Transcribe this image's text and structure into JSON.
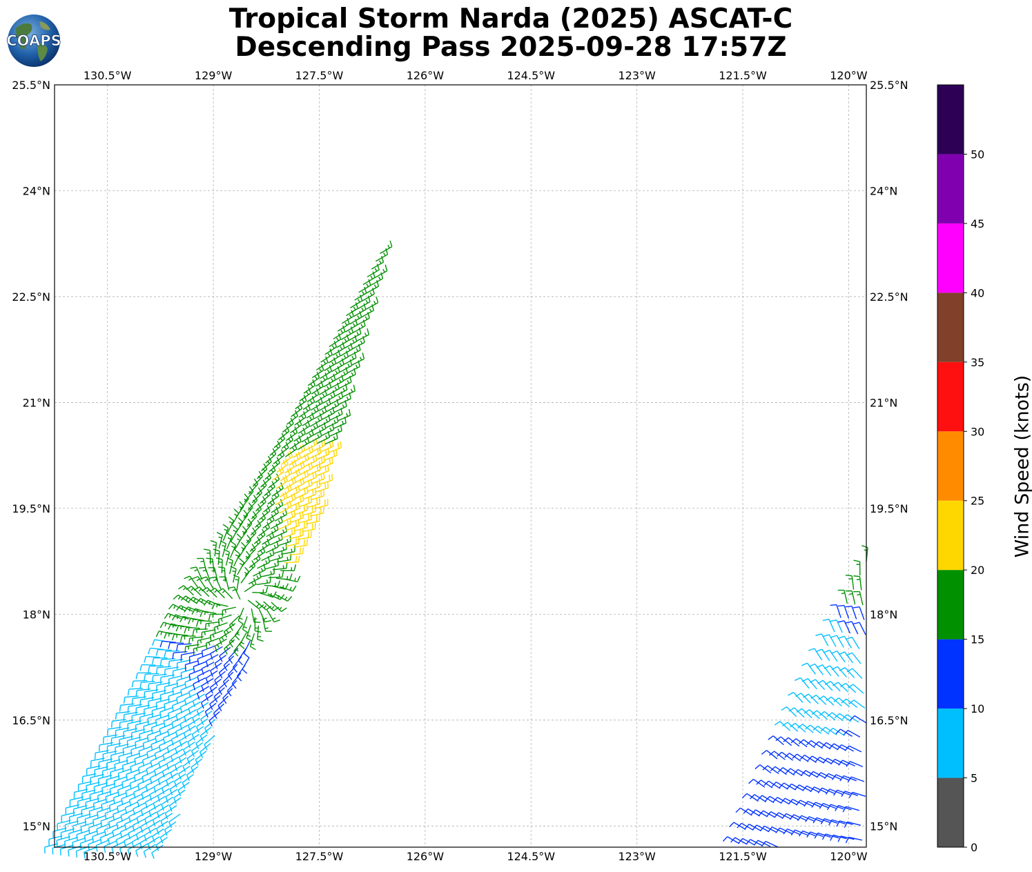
{
  "title_line1": "Tropical Storm Narda (2025) ASCAT-C",
  "title_line2": "Descending Pass 2025-09-28 17:57Z",
  "logo_text": "COAPS",
  "map": {
    "lon_ticks": [
      "130.5°W",
      "129°W",
      "127.5°W",
      "126°W",
      "124.5°W",
      "123°W",
      "121.5°W",
      "120°W"
    ],
    "lat_ticks": [
      "25.5°N",
      "24°N",
      "22.5°N",
      "21°N",
      "19.5°N",
      "18°N",
      "16.5°N",
      "15°N"
    ],
    "lon_range": [
      -131.25,
      -119.75
    ],
    "lat_range": [
      14.7,
      25.5
    ],
    "gridlines": true
  },
  "colorbar": {
    "label": "Wind Speed (knots)",
    "tick_labels": [
      "0",
      "5",
      "10",
      "15",
      "20",
      "25",
      "30",
      "35",
      "40",
      "45",
      "50"
    ],
    "bins": [
      {
        "min": 0,
        "max": 5,
        "color": "#555555"
      },
      {
        "min": 5,
        "max": 10,
        "color": "#00bfff"
      },
      {
        "min": 10,
        "max": 15,
        "color": "#0033ff"
      },
      {
        "min": 15,
        "max": 20,
        "color": "#009000"
      },
      {
        "min": 20,
        "max": 25,
        "color": "#ffd700"
      },
      {
        "min": 25,
        "max": 30,
        "color": "#ff8c00"
      },
      {
        "min": 30,
        "max": 35,
        "color": "#ff1010"
      },
      {
        "min": 35,
        "max": 40,
        "color": "#80402a"
      },
      {
        "min": 40,
        "max": 45,
        "color": "#ff00ff"
      },
      {
        "min": 45,
        "max": 50,
        "color": "#8000b0"
      },
      {
        "min": 50,
        "max": 55,
        "color": "#2d0055"
      }
    ]
  },
  "wind_swaths": [
    {
      "name": "western swath",
      "row_start_lon": -131.2,
      "row_start_lat": 14.75,
      "row_step_lon": 0.06,
      "row_step_lat": 0.11,
      "track_step_lon": 0.11,
      "track_step_lat": -0.01,
      "rows": 98,
      "columns": 41,
      "center_lon": -128.6,
      "center_lat": 18.2,
      "storm_tilt": 0.9,
      "speed_zones": [
        {
          "lon": -127.3,
          "lat": 19.6,
          "speed": 22,
          "radius": 1.3
        },
        {
          "lon": -126.7,
          "lat": 22.0,
          "speed": 17,
          "radius": 3.0
        },
        {
          "lon": -129.0,
          "lat": 19.3,
          "speed": 15,
          "radius": 1.4
        },
        {
          "lon": -131.0,
          "lat": 19.7,
          "speed": 12,
          "radius": 1.0
        },
        {
          "lon": -130.5,
          "lat": 16.0,
          "speed": 8,
          "radius": 1.6
        },
        {
          "lon": -130.5,
          "lat": 24.8,
          "speed": 8,
          "radius": 1.3
        }
      ],
      "background_speed": 12
    },
    {
      "name": "eastern swath",
      "row_start_lon": -121.55,
      "row_start_lat": 14.75,
      "row_step_lon": 0.09,
      "row_step_lat": 0.2,
      "track_step_lon": 0.11,
      "track_step_lat": -0.01,
      "rows": 28,
      "columns": 16,
      "center_lon": -118.0,
      "center_lat": 18.0,
      "storm_tilt": 0.3,
      "speed_zones": [
        {
          "lon": -120.1,
          "lat": 19.0,
          "speed": 17,
          "radius": 0.8
        },
        {
          "lon": -120.4,
          "lat": 17.0,
          "speed": 8,
          "radius": 0.7
        }
      ],
      "background_speed": 12
    }
  ]
}
